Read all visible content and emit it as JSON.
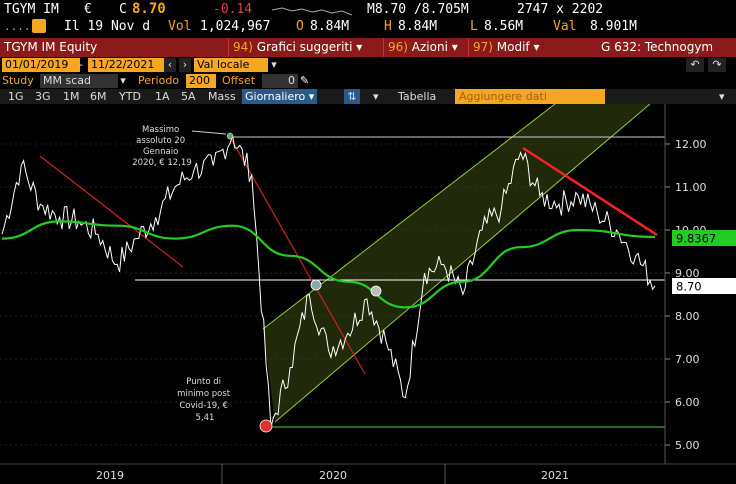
{
  "ticker": {
    "symbol": "TGYM IM",
    "currency": "€",
    "last_prefix": "C",
    "last": "8.70",
    "change": "-0.14",
    "bid_ask": "M8.70 /8.705M",
    "size": "2747 x 2202",
    "date_label": "Il 19 Nov d",
    "volume_label": "Vol",
    "volume": "1,024,967",
    "open_label": "O",
    "open": "8.84M",
    "high_label": "H",
    "high": "8.84M",
    "low_label": "L",
    "low": "8.56M",
    "value_label": "Val",
    "value": "8.901M"
  },
  "header": {
    "security": "TGYM IM Equity",
    "menu_graphs_num": "94)",
    "menu_graphs": "Grafici suggeriti",
    "menu_actions_num": "96)",
    "menu_actions": "Azioni",
    "menu_modify_num": "97)",
    "menu_modify": "Modif",
    "page_title": "G 632: Technogym"
  },
  "controls": {
    "date_from": "01/01/2019",
    "date_to": "11/22/2021",
    "currency_select": "Val locale",
    "study_label": "Study",
    "study_value": "MM scad",
    "period_label": "Periodo",
    "period_value": "200",
    "offset_label": "Offset",
    "offset_value": "0"
  },
  "toolbar": {
    "ranges": [
      "1G",
      "3G",
      "1M",
      "6M",
      "YTD",
      "1A",
      "5A",
      "Mass"
    ],
    "frequency": "Giornaliero",
    "table_label": "Tabella",
    "add_data_placeholder": "Aggiungere dati"
  },
  "colors": {
    "price_line": "#ffffff",
    "moving_average": "#22cc22",
    "trend_lines": "#dd2222",
    "channel_fill": "#3a4a10",
    "channel_border": "#8ecf3a",
    "header_bg": "#8b1a1a",
    "accent": "#f5a623"
  },
  "annotations": {
    "max_label": [
      "Massimo",
      "assoluto 20",
      "Gennaio",
      "2020, € 12,19"
    ],
    "min_label": [
      "Punto di",
      "minimo post",
      "Covid-19, €",
      "5,41"
    ]
  },
  "chart_data": {
    "type": "line",
    "title": "",
    "xlabel": "",
    "ylabel": "",
    "x_ticks": [
      "2019",
      "2020",
      "2021"
    ],
    "y_ticks": [
      "5.00",
      "6.00",
      "7.00",
      "8.00",
      "9.00",
      "10.00",
      "11.00",
      "12.00"
    ],
    "ylim": [
      4.9,
      12.6
    ],
    "last_price_tag": "8.70",
    "ma_value_tag": "9.8367",
    "series": [
      {
        "name": "",
        "x": [
          "2019-01",
          "2019-02",
          "2019-03",
          "2019-04",
          "2019-05",
          "2019-06",
          "2019-07",
          "2019-08",
          "2019-09",
          "2019-10",
          "2019-11",
          "2019-12",
          "2020-01",
          "2020-02",
          "2020-03",
          "2020-04",
          "2020-05",
          "2020-06",
          "2020-07",
          "2020-08",
          "2020-09",
          "2020-10",
          "2020-11",
          "2020-12",
          "2021-01",
          "2021-02",
          "2021-03",
          "2021-04",
          "2021-05",
          "2021-06",
          "2021-07",
          "2021-08",
          "2021-09",
          "2021-10",
          "2021-11"
        ],
        "values": [
          9.9,
          11.5,
          10.6,
          10.3,
          10.2,
          9.9,
          9.2,
          9.8,
          10.3,
          11.0,
          11.4,
          11.5,
          12.19,
          11.3,
          5.41,
          6.8,
          8.5,
          7.2,
          7.6,
          8.4,
          7.4,
          6.1,
          9.0,
          9.2,
          8.5,
          10.0,
          10.5,
          11.8,
          10.8,
          10.6,
          10.8,
          10.4,
          10.0,
          9.4,
          8.7
        ]
      },
      {
        "name": "",
        "x": [
          "2019-01",
          "2019-04",
          "2019-07",
          "2019-10",
          "2020-01",
          "2020-04",
          "2020-07",
          "2020-10",
          "2021-01",
          "2021-04",
          "2021-07",
          "2021-11"
        ],
        "values": [
          9.8,
          10.2,
          10.1,
          9.8,
          10.1,
          9.4,
          8.8,
          8.2,
          8.8,
          9.6,
          10.0,
          9.84
        ]
      }
    ]
  }
}
